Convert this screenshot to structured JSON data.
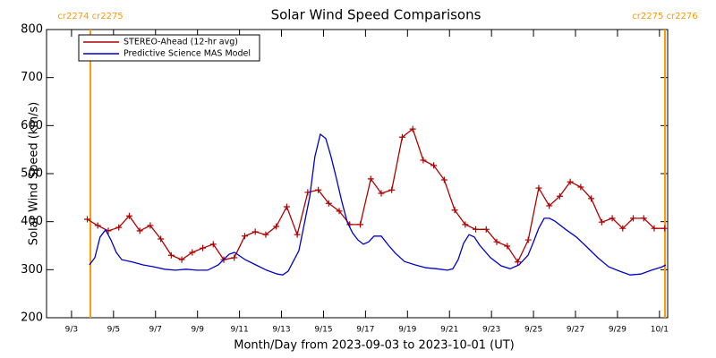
{
  "chart_data": {
    "type": "line",
    "title": "Solar Wind Speed Comparisons",
    "x_label": "Month/Day from 2023-09-03 to 2023-10-01 (UT)",
    "y_label": "Solar Wind Speed (km/s)",
    "xlim": [
      -1.19,
      28.39
    ],
    "ylim": [
      200,
      800
    ],
    "yticks": [
      200,
      300,
      400,
      500,
      600,
      700,
      800
    ],
    "xticks": [
      {
        "value": 0,
        "label": "9/3"
      },
      {
        "value": 2,
        "label": "9/5"
      },
      {
        "value": 4,
        "label": "9/7"
      },
      {
        "value": 6,
        "label": "9/9"
      },
      {
        "value": 8,
        "label": "9/11"
      },
      {
        "value": 10,
        "label": "9/13"
      },
      {
        "value": 12,
        "label": "9/15"
      },
      {
        "value": 14,
        "label": "9/17"
      },
      {
        "value": 16,
        "label": "9/19"
      },
      {
        "value": 18,
        "label": "9/21"
      },
      {
        "value": 20,
        "label": "9/23"
      },
      {
        "value": 22,
        "label": "9/25"
      },
      {
        "value": 24,
        "label": "9/27"
      },
      {
        "value": 26,
        "label": "9/29"
      },
      {
        "value": 28,
        "label": "10/1"
      }
    ],
    "markers": [
      {
        "x": 0.9,
        "label": "cr2274 cr2275",
        "color": "#ff9900"
      },
      {
        "x": 28.26,
        "label": "cr2275 cr2276",
        "color": "#ff9900"
      }
    ],
    "legend": "upper left",
    "series": [
      {
        "name": "STEREO-Ahead (12-hr avg)",
        "color": "#b00000",
        "marker": "+",
        "x": [
          0.75,
          1.25,
          1.75,
          2.25,
          2.75,
          3.25,
          3.75,
          4.25,
          4.75,
          5.25,
          5.75,
          6.25,
          6.75,
          7.25,
          7.75,
          8.25,
          8.75,
          9.25,
          9.75,
          10.25,
          10.75,
          11.25,
          11.75,
          12.25,
          12.75,
          13.25,
          13.75,
          14.25,
          14.75,
          15.25,
          15.75,
          16.25,
          16.75,
          17.25,
          17.75,
          18.25,
          18.75,
          19.25,
          19.75,
          20.25,
          20.75,
          21.25,
          21.75,
          22.25,
          22.75,
          23.25,
          23.75,
          24.25,
          24.75,
          25.25,
          25.75,
          26.25,
          26.75,
          27.25,
          27.75,
          28.25
        ],
        "values": [
          405,
          392,
          381,
          388,
          412,
          381,
          392,
          364,
          330,
          321,
          336,
          345,
          353,
          321,
          325,
          370,
          379,
          373,
          390,
          431,
          373,
          461,
          466,
          438,
          422,
          394,
          394,
          489,
          459,
          466,
          576,
          593,
          528,
          517,
          487,
          424,
          394,
          384,
          384,
          358,
          349,
          316,
          362,
          470,
          433,
          453,
          483,
          472,
          448,
          399,
          407,
          386,
          407,
          407,
          386,
          386
        ]
      },
      {
        "name": "Predictive Science MAS Model",
        "color": "#0000cc",
        "marker": null,
        "x": [
          0.85,
          1.11,
          1.36,
          1.62,
          1.88,
          2.13,
          2.39,
          2.9,
          3.41,
          3.92,
          4.43,
          4.94,
          5.46,
          5.97,
          6.48,
          6.99,
          7.5,
          7.76,
          8.27,
          8.78,
          9.29,
          9.8,
          10.06,
          10.32,
          10.83,
          11.34,
          11.59,
          11.85,
          12.11,
          12.36,
          12.62,
          12.87,
          13.13,
          13.38,
          13.64,
          13.9,
          14.15,
          14.41,
          14.75,
          15.09,
          15.43,
          15.86,
          16.37,
          16.88,
          17.39,
          17.9,
          18.16,
          18.41,
          18.67,
          18.93,
          19.18,
          19.44,
          19.95,
          20.46,
          20.89,
          21.31,
          21.74,
          22.0,
          22.25,
          22.51,
          22.76,
          23.02,
          23.53,
          24.04,
          24.55,
          25.06,
          25.58,
          26.09,
          26.6,
          27.11,
          27.62,
          28.13,
          28.3
        ],
        "values": [
          310,
          325,
          368,
          383,
          362,
          336,
          321,
          316,
          310,
          306,
          301,
          299,
          301,
          299,
          299,
          310,
          332,
          336,
          321,
          310,
          299,
          291,
          289,
          297,
          340,
          451,
          535,
          582,
          573,
          535,
          489,
          442,
          399,
          377,
          362,
          353,
          358,
          370,
          370,
          351,
          334,
          317,
          310,
          304,
          302,
          299,
          302,
          321,
          355,
          373,
          368,
          351,
          325,
          308,
          302,
          310,
          330,
          358,
          386,
          407,
          407,
          401,
          384,
          368,
          347,
          325,
          306,
          297,
          289,
          291,
          299,
          306,
          310
        ]
      }
    ]
  }
}
